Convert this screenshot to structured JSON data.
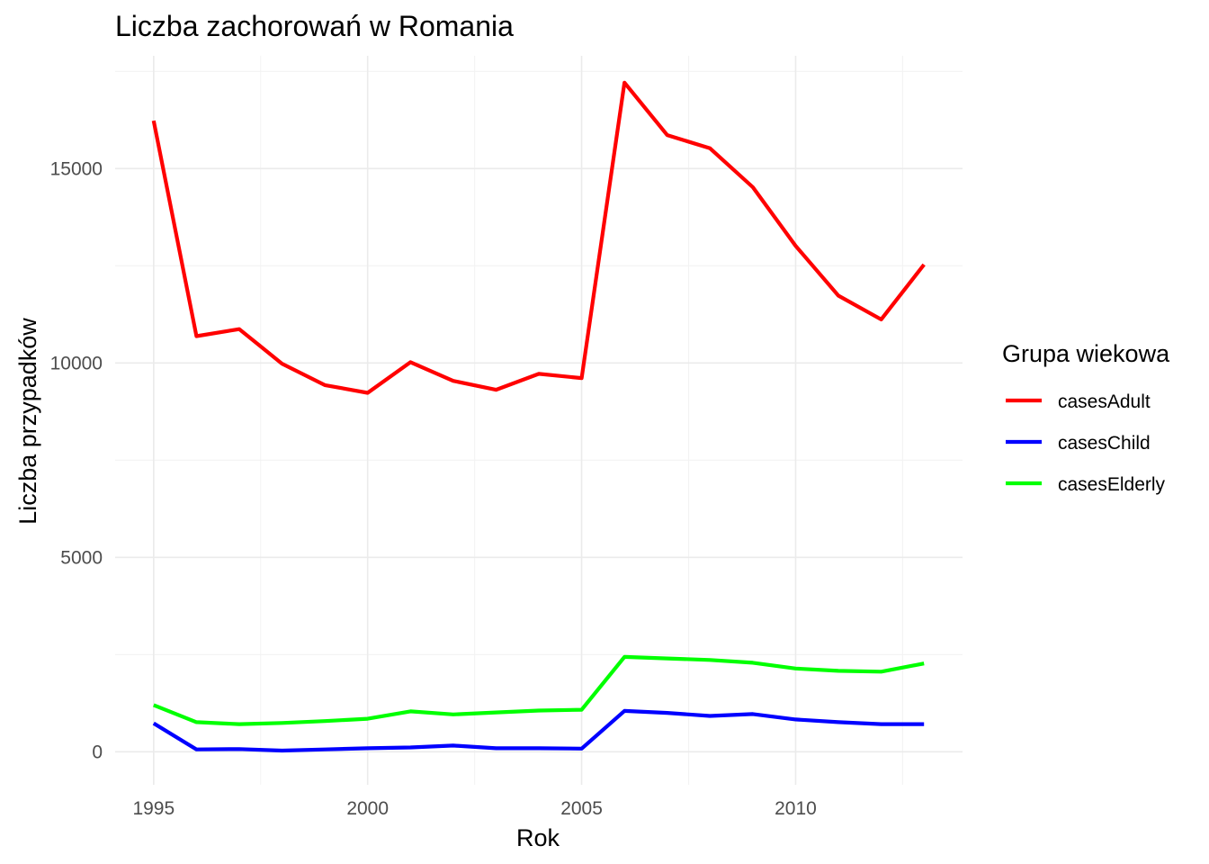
{
  "chart_data": {
    "type": "line",
    "title": "Liczba zachorowań w Romania",
    "xlabel": "Rok",
    "ylabel": "Liczba przypadków",
    "x": [
      1995,
      1996,
      1997,
      1998,
      1999,
      2000,
      2001,
      2002,
      2003,
      2004,
      2005,
      2006,
      2007,
      2008,
      2009,
      2010,
      2011,
      2012,
      2013
    ],
    "xlim": [
      1994.1,
      2013.9
    ],
    "ylim": [
      -850,
      17900
    ],
    "x_ticks": [
      "1995",
      "2000",
      "2005",
      "2010"
    ],
    "y_ticks": [
      "0",
      "5000",
      "10000",
      "15000"
    ],
    "grid": true,
    "legend": {
      "title": "Grupa wiekowa",
      "position": "right"
    },
    "series": [
      {
        "name": "casesAdult",
        "color": "#ff0000",
        "values": [
          16230,
          10690,
          10870,
          9980,
          9430,
          9230,
          10020,
          9540,
          9310,
          9720,
          9610,
          17210,
          15860,
          15520,
          14520,
          13010,
          11730,
          11120,
          12530
        ]
      },
      {
        "name": "casesChild",
        "color": "#0000ff",
        "values": [
          730,
          60,
          70,
          30,
          60,
          90,
          110,
          160,
          90,
          90,
          80,
          1050,
          1000,
          920,
          970,
          830,
          760,
          710,
          710
        ]
      },
      {
        "name": "casesElderly",
        "color": "#00ff00",
        "values": [
          1200,
          760,
          710,
          740,
          790,
          850,
          1040,
          960,
          1010,
          1060,
          1080,
          2440,
          2400,
          2360,
          2290,
          2140,
          2080,
          2060,
          2270
        ]
      }
    ]
  }
}
